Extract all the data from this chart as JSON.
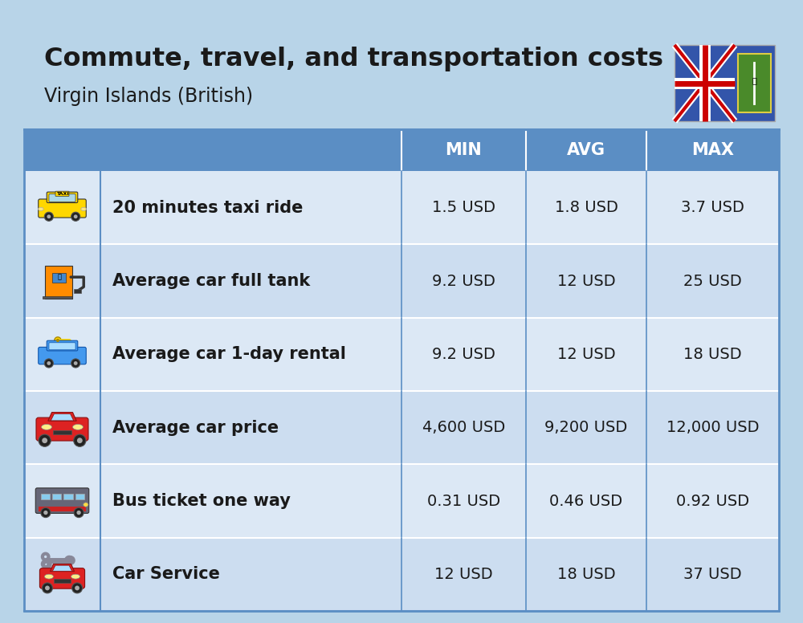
{
  "title": "Commute, travel, and transportation costs",
  "subtitle": "Virgin Islands (British)",
  "background_color": "#b8d4e8",
  "header_bg_color": "#5b8ec4",
  "header_text_color": "#ffffff",
  "row_bg_color_odd": "#dce8f5",
  "row_bg_color_even": "#ccddf0",
  "separator_color": "#ffffff",
  "text_color": "#1a1a1a",
  "col_headers": [
    "MIN",
    "AVG",
    "MAX"
  ],
  "rows": [
    {
      "label": "20 minutes taxi ride",
      "min": "1.5 USD",
      "avg": "1.8 USD",
      "max": "3.7 USD"
    },
    {
      "label": "Average car full tank",
      "min": "9.2 USD",
      "avg": "12 USD",
      "max": "25 USD"
    },
    {
      "label": "Average car 1-day rental",
      "min": "9.2 USD",
      "avg": "12 USD",
      "max": "18 USD"
    },
    {
      "label": "Average car price",
      "min": "4,600 USD",
      "avg": "9,200 USD",
      "max": "12,000 USD"
    },
    {
      "label": "Bus ticket one way",
      "min": "0.31 USD",
      "avg": "0.46 USD",
      "max": "0.92 USD"
    },
    {
      "label": "Car Service",
      "min": "12 USD",
      "avg": "18 USD",
      "max": "37 USD"
    }
  ],
  "title_fontsize": 23,
  "subtitle_fontsize": 17,
  "header_fontsize": 15,
  "cell_fontsize": 14,
  "label_fontsize": 15
}
